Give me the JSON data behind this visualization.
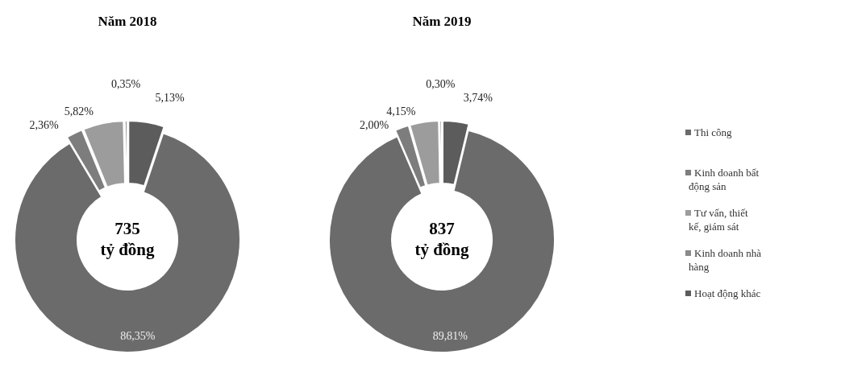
{
  "chart_data": [
    {
      "type": "donut",
      "title": "Năm 2018",
      "values": [
        86.35,
        2.36,
        5.82,
        0.35,
        5.13
      ],
      "value_labels": [
        "86,35%",
        "2,36%",
        "5,82%",
        "0,35%",
        "5,13%"
      ],
      "colors": [
        "#6b6b6b",
        "#7d7d7d",
        "#9c9c9c",
        "#8a8a8a",
        "#5c5c5c"
      ],
      "annotations": [
        "735\ntỷ đồng"
      ],
      "legend": false
    },
    {
      "type": "donut",
      "title": "Năm 2019",
      "categories": [
        "Thi công",
        "Kinh doanh bất động sản",
        "Tư vấn, thiết kế, giám sát",
        "Kinh doanh nhà hàng",
        "Hoạt động khác"
      ],
      "values": [
        89.81,
        2.0,
        4.15,
        0.3,
        3.74
      ],
      "value_labels": [
        "89,81%",
        "2,00%",
        "4,15%",
        "0,30%",
        "3,74%"
      ],
      "colors": [
        "#6b6b6b",
        "#7d7d7d",
        "#9c9c9c",
        "#8a8a8a",
        "#5c5c5c"
      ],
      "annotations": [
        "837\ntỷ đồng"
      ],
      "legend": "right"
    }
  ]
}
